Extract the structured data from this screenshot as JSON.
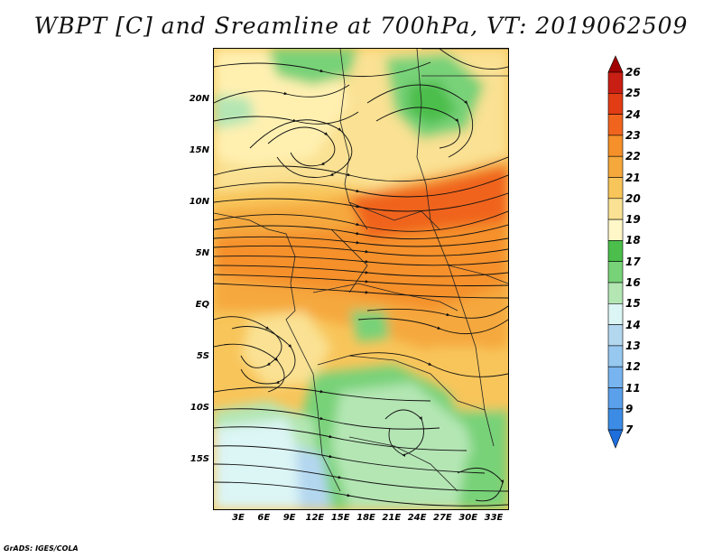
{
  "title": "WBPT [C] and Sreamline at 700hPa, VT: 2019062509",
  "footer": "GrADS: IGES/COLA",
  "map": {
    "lat_ticks": [
      "20N",
      "15N",
      "10N",
      "5N",
      "EQ",
      "5S",
      "10S",
      "15S"
    ],
    "lon_ticks": [
      "3E",
      "6E",
      "9E",
      "12E",
      "15E",
      "18E",
      "21E",
      "24E",
      "27E",
      "30E",
      "33E"
    ]
  },
  "colorbar": {
    "labels": [
      "26",
      "25",
      "24",
      "23",
      "22",
      "21",
      "20",
      "19",
      "18",
      "17",
      "16",
      "15",
      "14",
      "13",
      "12",
      "11",
      "9",
      "7"
    ],
    "colors": [
      "#a00000",
      "#c81e14",
      "#e13c14",
      "#f0641e",
      "#f5902a",
      "#f5a83c",
      "#f8c55a",
      "#fae193",
      "#fff7c8",
      "#4bbe4b",
      "#78d278",
      "#b4e6b4",
      "#dcf5f5",
      "#b4d7f0",
      "#96c8f0",
      "#78b4f0",
      "#5aa0eb",
      "#3c8ce6",
      "#1e6edc"
    ]
  }
}
